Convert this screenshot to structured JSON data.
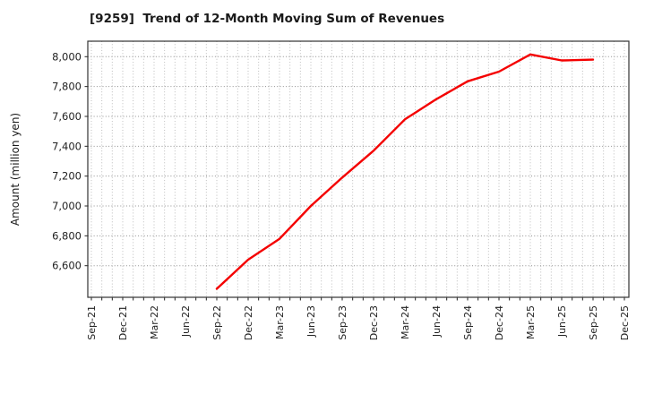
{
  "window": {
    "background": "#ffffff"
  },
  "chart_data": {
    "type": "line",
    "title": "[9259]  Trend of 12-Month Moving Sum of Revenues",
    "ticker": "9259",
    "xlabel": "",
    "ylabel": "Amount (million yen)",
    "ylim": [
      6390,
      8105
    ],
    "y_ticks": [
      6600,
      6800,
      7000,
      7200,
      7400,
      7600,
      7800,
      8000
    ],
    "y_tick_labels": [
      "6,600",
      "6,800",
      "7,000",
      "7,200",
      "7,400",
      "7,600",
      "7,800",
      "8,000"
    ],
    "x_tick_labels": [
      "Sep-21",
      "Dec-21",
      "Mar-22",
      "Jun-22",
      "Sep-22",
      "Dec-22",
      "Mar-23",
      "Jun-23",
      "Sep-23",
      "Dec-23",
      "Mar-24",
      "Jun-24",
      "Sep-24",
      "Dec-24",
      "Mar-25",
      "Jun-25",
      "Sep-25",
      "Dec-25"
    ],
    "x_axis_start": "Sep-21",
    "x_axis_end": "Dec-25",
    "x_months_total": 52,
    "grid": {
      "vertical": "monthly dotted",
      "horizontal": "every 200 dotted",
      "on": true
    },
    "legend": "none",
    "series": [
      {
        "name": "12-Month Moving Sum of Revenues",
        "color": "#f40000",
        "points": [
          {
            "month": "Sep-22",
            "index": 12,
            "value": 6445
          },
          {
            "month": "Dec-22",
            "index": 15,
            "value": 6640
          },
          {
            "month": "Mar-23",
            "index": 18,
            "value": 6780
          },
          {
            "month": "Jun-23",
            "index": 21,
            "value": 7000
          },
          {
            "month": "Sep-23",
            "index": 24,
            "value": 7190
          },
          {
            "month": "Dec-23",
            "index": 27,
            "value": 7370
          },
          {
            "month": "Mar-24",
            "index": 30,
            "value": 7580
          },
          {
            "month": "Jun-24",
            "index": 33,
            "value": 7715
          },
          {
            "month": "Sep-24",
            "index": 36,
            "value": 7835
          },
          {
            "month": "Dec-24",
            "index": 39,
            "value": 7900
          },
          {
            "month": "Mar-25",
            "index": 42,
            "value": 8015
          },
          {
            "month": "Jun-25",
            "index": 45,
            "value": 7975
          },
          {
            "month": "Sep-25",
            "index": 48,
            "value": 7980
          }
        ]
      }
    ],
    "colors": {
      "line": "#f40000",
      "plot_border": "#333333",
      "h_grid": "#8f8f8f",
      "v_grid": "#bdbdbd",
      "tick_text": "#222222"
    }
  }
}
